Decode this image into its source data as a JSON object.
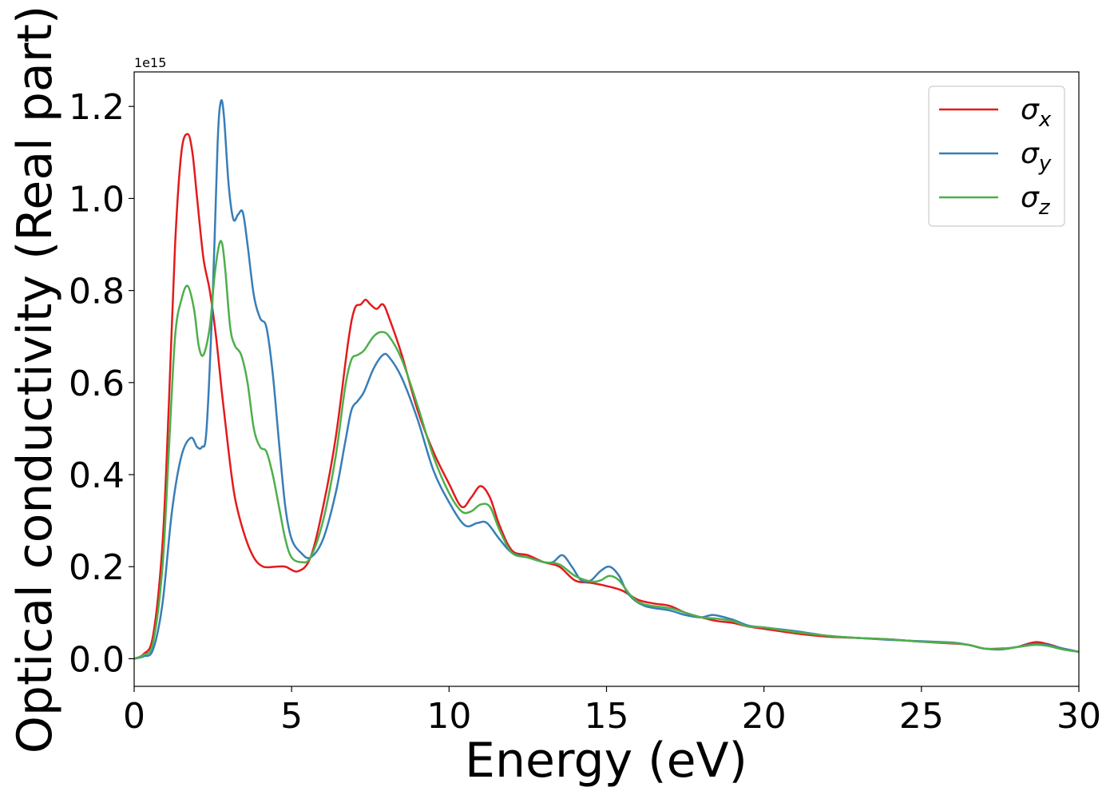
{
  "chart_data": {
    "type": "line",
    "title": "",
    "xlabel": "Energy (eV)",
    "ylabel": "Optical conductivity (Real part)",
    "y_offset_label": "1e15",
    "xlim": [
      0,
      30
    ],
    "ylim": [
      -0.06,
      1.275
    ],
    "x_ticks": [
      0,
      5,
      10,
      15,
      20,
      25,
      30
    ],
    "x_tick_labels": [
      "0",
      "5",
      "10",
      "15",
      "20",
      "25",
      "30"
    ],
    "y_ticks": [
      0.0,
      0.2,
      0.4,
      0.6,
      0.8,
      1.0,
      1.2
    ],
    "y_tick_labels": [
      "0.0",
      "0.2",
      "0.4",
      "0.6",
      "0.8",
      "1.0",
      "1.2"
    ],
    "grid": false,
    "legend_position": "top-right",
    "series": [
      {
        "name": "σ",
        "subscript": "x",
        "color": "#e41a1c",
        "points": [
          [
            0,
            0
          ],
          [
            0.3,
            0.01
          ],
          [
            0.6,
            0.05
          ],
          [
            0.9,
            0.25
          ],
          [
            1.1,
            0.55
          ],
          [
            1.3,
            0.9
          ],
          [
            1.5,
            1.1
          ],
          [
            1.7,
            1.14
          ],
          [
            1.85,
            1.1
          ],
          [
            2.0,
            1.0
          ],
          [
            2.2,
            0.87
          ],
          [
            2.4,
            0.8
          ],
          [
            2.6,
            0.7
          ],
          [
            2.8,
            0.57
          ],
          [
            3.0,
            0.45
          ],
          [
            3.2,
            0.35
          ],
          [
            3.5,
            0.27
          ],
          [
            3.8,
            0.22
          ],
          [
            4.1,
            0.2
          ],
          [
            4.5,
            0.2
          ],
          [
            4.8,
            0.2
          ],
          [
            5.2,
            0.19
          ],
          [
            5.6,
            0.22
          ],
          [
            6.0,
            0.33
          ],
          [
            6.4,
            0.48
          ],
          [
            6.8,
            0.69
          ],
          [
            7.0,
            0.76
          ],
          [
            7.2,
            0.77
          ],
          [
            7.35,
            0.78
          ],
          [
            7.5,
            0.77
          ],
          [
            7.7,
            0.76
          ],
          [
            7.9,
            0.77
          ],
          [
            8.1,
            0.74
          ],
          [
            8.5,
            0.66
          ],
          [
            9.0,
            0.54
          ],
          [
            9.5,
            0.45
          ],
          [
            10.0,
            0.38
          ],
          [
            10.4,
            0.33
          ],
          [
            10.7,
            0.35
          ],
          [
            11.0,
            0.375
          ],
          [
            11.3,
            0.35
          ],
          [
            11.6,
            0.29
          ],
          [
            12.0,
            0.235
          ],
          [
            12.5,
            0.225
          ],
          [
            13.0,
            0.21
          ],
          [
            13.5,
            0.2
          ],
          [
            14.0,
            0.17
          ],
          [
            14.5,
            0.165
          ],
          [
            15.0,
            0.158
          ],
          [
            15.5,
            0.148
          ],
          [
            16.0,
            0.128
          ],
          [
            16.5,
            0.12
          ],
          [
            17.0,
            0.115
          ],
          [
            17.5,
            0.1
          ],
          [
            18.0,
            0.09
          ],
          [
            18.5,
            0.082
          ],
          [
            19.0,
            0.078
          ],
          [
            19.5,
            0.07
          ],
          [
            20.0,
            0.065
          ],
          [
            21.0,
            0.055
          ],
          [
            22.0,
            0.048
          ],
          [
            23.0,
            0.045
          ],
          [
            24.0,
            0.042
          ],
          [
            25.0,
            0.037
          ],
          [
            26.0,
            0.033
          ],
          [
            26.5,
            0.03
          ],
          [
            27.0,
            0.022
          ],
          [
            27.5,
            0.022
          ],
          [
            28.0,
            0.025
          ],
          [
            28.6,
            0.036
          ],
          [
            29.0,
            0.032
          ],
          [
            29.5,
            0.022
          ],
          [
            30.0,
            0.015
          ]
        ]
      },
      {
        "name": "σ",
        "subscript": "y",
        "color": "#377eb8",
        "points": [
          [
            0,
            0
          ],
          [
            0.3,
            0.005
          ],
          [
            0.6,
            0.02
          ],
          [
            0.9,
            0.12
          ],
          [
            1.2,
            0.32
          ],
          [
            1.5,
            0.44
          ],
          [
            1.8,
            0.48
          ],
          [
            2.0,
            0.46
          ],
          [
            2.15,
            0.46
          ],
          [
            2.3,
            0.5
          ],
          [
            2.5,
            0.8
          ],
          [
            2.65,
            1.12
          ],
          [
            2.75,
            1.21
          ],
          [
            2.85,
            1.18
          ],
          [
            3.0,
            1.03
          ],
          [
            3.15,
            0.955
          ],
          [
            3.3,
            0.965
          ],
          [
            3.45,
            0.97
          ],
          [
            3.6,
            0.9
          ],
          [
            3.8,
            0.79
          ],
          [
            4.0,
            0.74
          ],
          [
            4.2,
            0.72
          ],
          [
            4.4,
            0.62
          ],
          [
            4.6,
            0.47
          ],
          [
            4.8,
            0.33
          ],
          [
            5.0,
            0.26
          ],
          [
            5.3,
            0.23
          ],
          [
            5.6,
            0.22
          ],
          [
            6.0,
            0.26
          ],
          [
            6.4,
            0.36
          ],
          [
            6.7,
            0.47
          ],
          [
            6.9,
            0.54
          ],
          [
            7.1,
            0.56
          ],
          [
            7.3,
            0.58
          ],
          [
            7.6,
            0.63
          ],
          [
            7.9,
            0.66
          ],
          [
            8.1,
            0.655
          ],
          [
            8.5,
            0.61
          ],
          [
            9.0,
            0.52
          ],
          [
            9.5,
            0.41
          ],
          [
            10.0,
            0.34
          ],
          [
            10.5,
            0.29
          ],
          [
            10.9,
            0.295
          ],
          [
            11.2,
            0.295
          ],
          [
            11.6,
            0.26
          ],
          [
            12.0,
            0.23
          ],
          [
            12.5,
            0.22
          ],
          [
            13.0,
            0.21
          ],
          [
            13.3,
            0.21
          ],
          [
            13.6,
            0.225
          ],
          [
            13.9,
            0.2
          ],
          [
            14.2,
            0.17
          ],
          [
            14.5,
            0.17
          ],
          [
            14.8,
            0.19
          ],
          [
            15.1,
            0.2
          ],
          [
            15.4,
            0.18
          ],
          [
            15.7,
            0.14
          ],
          [
            16.2,
            0.115
          ],
          [
            17.0,
            0.105
          ],
          [
            17.5,
            0.095
          ],
          [
            18.0,
            0.09
          ],
          [
            18.4,
            0.095
          ],
          [
            19.0,
            0.085
          ],
          [
            19.5,
            0.072
          ],
          [
            20.0,
            0.068
          ],
          [
            21.0,
            0.06
          ],
          [
            22.0,
            0.05
          ],
          [
            23.0,
            0.045
          ],
          [
            24.0,
            0.041
          ],
          [
            25.0,
            0.038
          ],
          [
            26.0,
            0.035
          ],
          [
            26.5,
            0.03
          ],
          [
            27.0,
            0.022
          ],
          [
            27.5,
            0.02
          ],
          [
            28.0,
            0.025
          ],
          [
            28.6,
            0.032
          ],
          [
            29.0,
            0.03
          ],
          [
            29.5,
            0.022
          ],
          [
            30.0,
            0.015
          ]
        ]
      },
      {
        "name": "σ",
        "subscript": "z",
        "color": "#4daf4a",
        "points": [
          [
            0,
            0
          ],
          [
            0.3,
            0.008
          ],
          [
            0.6,
            0.035
          ],
          [
            0.9,
            0.2
          ],
          [
            1.1,
            0.45
          ],
          [
            1.3,
            0.7
          ],
          [
            1.5,
            0.78
          ],
          [
            1.7,
            0.81
          ],
          [
            1.9,
            0.76
          ],
          [
            2.05,
            0.68
          ],
          [
            2.2,
            0.66
          ],
          [
            2.4,
            0.72
          ],
          [
            2.55,
            0.83
          ],
          [
            2.7,
            0.9
          ],
          [
            2.8,
            0.9
          ],
          [
            2.9,
            0.84
          ],
          [
            3.05,
            0.72
          ],
          [
            3.2,
            0.68
          ],
          [
            3.4,
            0.66
          ],
          [
            3.6,
            0.6
          ],
          [
            3.8,
            0.5
          ],
          [
            4.0,
            0.46
          ],
          [
            4.2,
            0.45
          ],
          [
            4.4,
            0.4
          ],
          [
            4.6,
            0.33
          ],
          [
            4.8,
            0.26
          ],
          [
            5.0,
            0.22
          ],
          [
            5.3,
            0.21
          ],
          [
            5.6,
            0.22
          ],
          [
            6.0,
            0.3
          ],
          [
            6.4,
            0.44
          ],
          [
            6.7,
            0.59
          ],
          [
            6.9,
            0.65
          ],
          [
            7.1,
            0.66
          ],
          [
            7.3,
            0.67
          ],
          [
            7.6,
            0.7
          ],
          [
            7.85,
            0.71
          ],
          [
            8.1,
            0.7
          ],
          [
            8.5,
            0.65
          ],
          [
            9.0,
            0.55
          ],
          [
            9.5,
            0.44
          ],
          [
            10.0,
            0.36
          ],
          [
            10.4,
            0.32
          ],
          [
            10.7,
            0.32
          ],
          [
            11.0,
            0.335
          ],
          [
            11.3,
            0.33
          ],
          [
            11.6,
            0.28
          ],
          [
            12.0,
            0.23
          ],
          [
            12.5,
            0.22
          ],
          [
            13.0,
            0.21
          ],
          [
            13.5,
            0.205
          ],
          [
            14.0,
            0.18
          ],
          [
            14.5,
            0.168
          ],
          [
            14.8,
            0.17
          ],
          [
            15.1,
            0.18
          ],
          [
            15.4,
            0.17
          ],
          [
            15.8,
            0.135
          ],
          [
            16.2,
            0.118
          ],
          [
            17.0,
            0.11
          ],
          [
            17.5,
            0.1
          ],
          [
            18.0,
            0.09
          ],
          [
            18.5,
            0.087
          ],
          [
            19.0,
            0.082
          ],
          [
            19.5,
            0.07
          ],
          [
            20.0,
            0.068
          ],
          [
            21.0,
            0.058
          ],
          [
            22.0,
            0.05
          ],
          [
            23.0,
            0.045
          ],
          [
            24.0,
            0.042
          ],
          [
            25.0,
            0.037
          ],
          [
            26.0,
            0.034
          ],
          [
            26.5,
            0.03
          ],
          [
            27.0,
            0.022
          ],
          [
            27.5,
            0.021
          ],
          [
            28.0,
            0.025
          ],
          [
            28.6,
            0.03
          ],
          [
            29.0,
            0.028
          ],
          [
            29.5,
            0.02
          ],
          [
            30.0,
            0.015
          ]
        ]
      }
    ]
  }
}
